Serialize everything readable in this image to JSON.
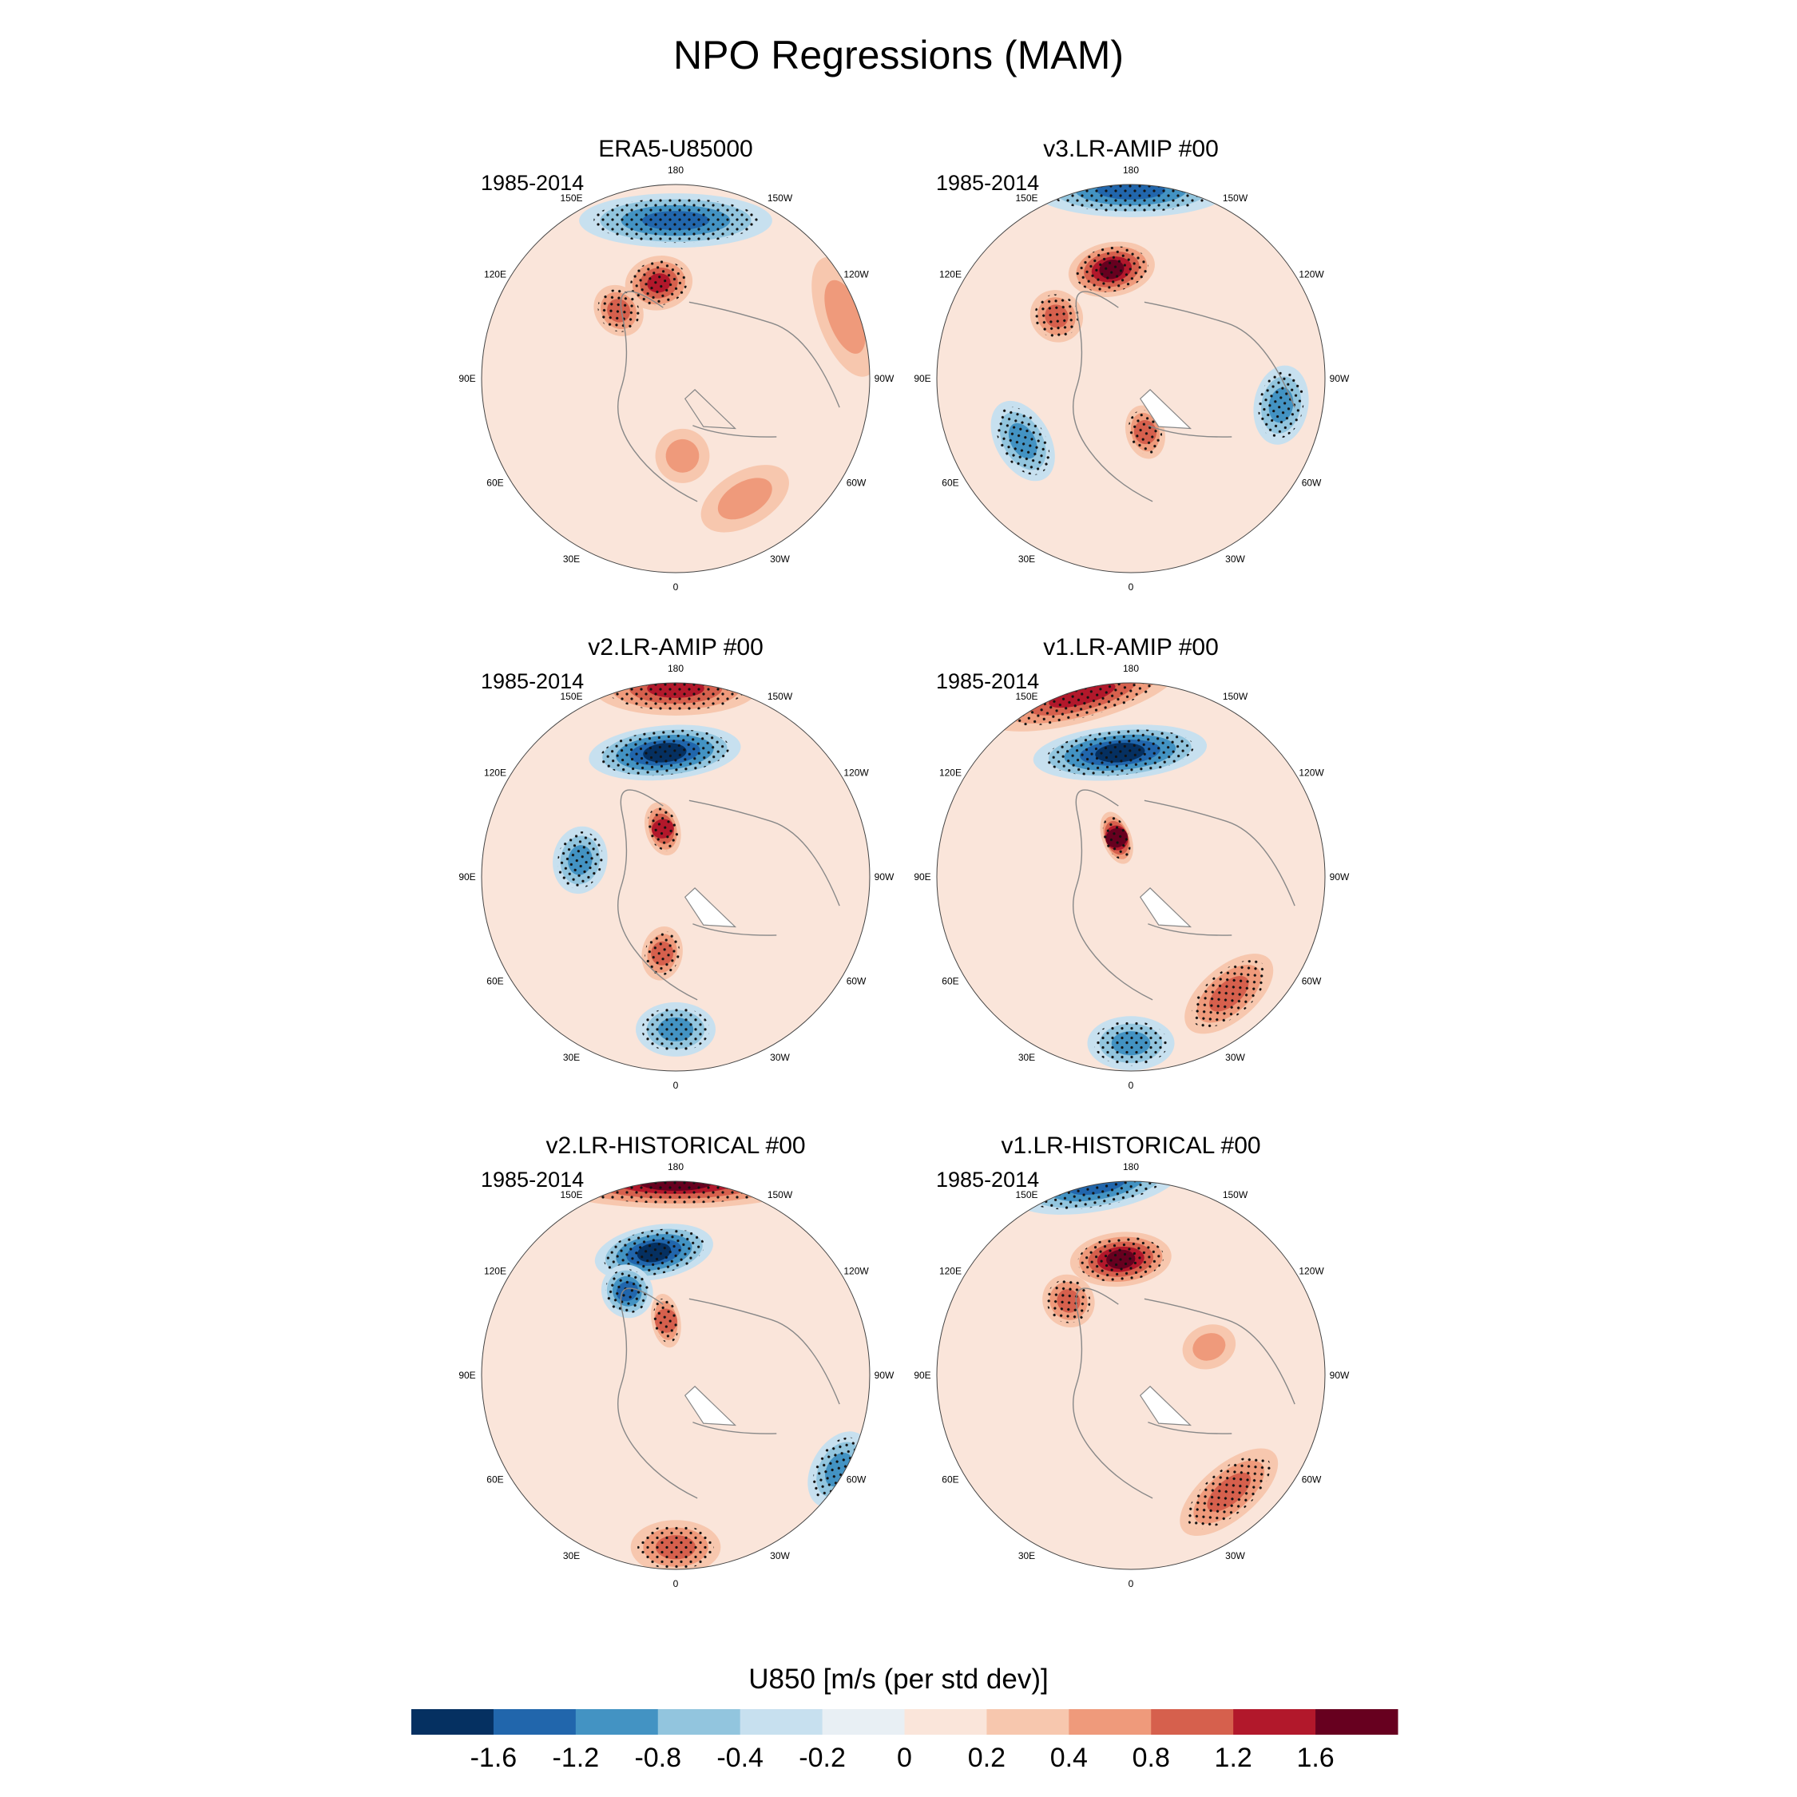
{
  "title": "NPO Regressions (MAM)",
  "chart_data": {
    "type": "polar-stereographic-contour-maps",
    "variable": "U850",
    "panels": [
      {
        "title": "ERA5-U85000",
        "period": "1985-2014",
        "features": [
          {
            "lon": 180,
            "lat": 33,
            "lon_span": 70,
            "value": -1.2
          },
          {
            "lon": 170,
            "lat": 55,
            "lon_span": 40,
            "value": 1.2
          },
          {
            "lon": 140,
            "lat": 58,
            "lon_span": 30,
            "value": 0.8
          },
          {
            "lon": -110,
            "lat": 25,
            "lon_span": 40,
            "value": 0.4
          },
          {
            "lon": -30,
            "lat": 40,
            "lon_span": 40,
            "value": 0.4
          },
          {
            "lon": -5,
            "lat": 62,
            "lon_span": 40,
            "value": 0.4
          }
        ]
      },
      {
        "title": "v3.LR-AMIP  #00",
        "period": "1985-2014",
        "features": [
          {
            "lon": 180,
            "lat": 22,
            "lon_span": 60,
            "value": -1.2
          },
          {
            "lon": 170,
            "lat": 50,
            "lon_span": 45,
            "value": 1.6
          },
          {
            "lon": 130,
            "lat": 55,
            "lon_span": 30,
            "value": 0.8
          },
          {
            "lon": -15,
            "lat": 70,
            "lon_span": 40,
            "value": 0.8
          },
          {
            "lon": -80,
            "lat": 35,
            "lon_span": 30,
            "value": -0.8
          },
          {
            "lon": 60,
            "lat": 45,
            "lon_span": 40,
            "value": -0.8
          }
        ]
      },
      {
        "title": "v2.LR-AMIP  #00",
        "period": "1985-2014",
        "features": [
          {
            "lon": 180,
            "lat": 22,
            "lon_span": 50,
            "value": 1.2
          },
          {
            "lon": 175,
            "lat": 45,
            "lon_span": 70,
            "value": -1.6
          },
          {
            "lon": 165,
            "lat": 72,
            "lon_span": 40,
            "value": 1.2
          },
          {
            "lon": 100,
            "lat": 55,
            "lon_span": 40,
            "value": -0.8
          },
          {
            "lon": 0,
            "lat": 35,
            "lon_span": 30,
            "value": -0.8
          },
          {
            "lon": 10,
            "lat": 62,
            "lon_span": 30,
            "value": 0.8
          }
        ]
      },
      {
        "title": "v1.LR-AMIP  #00",
        "period": "1985-2014",
        "features": [
          {
            "lon": 165,
            "lat": 22,
            "lon_span": 60,
            "value": 1.2
          },
          {
            "lon": 175,
            "lat": 45,
            "lon_span": 80,
            "value": -1.6
          },
          {
            "lon": 160,
            "lat": 75,
            "lon_span": 40,
            "value": 1.6
          },
          {
            "lon": -40,
            "lat": 35,
            "lon_span": 40,
            "value": 0.8
          },
          {
            "lon": 0,
            "lat": 30,
            "lon_span": 30,
            "value": -0.8
          }
        ]
      },
      {
        "title": "v2.LR-HISTORICAL  #00",
        "period": "1985-2014",
        "features": [
          {
            "lon": 180,
            "lat": 20,
            "lon_span": 80,
            "value": 1.6
          },
          {
            "lon": 170,
            "lat": 45,
            "lon_span": 55,
            "value": -1.6
          },
          {
            "lon": 150,
            "lat": 55,
            "lon_span": 30,
            "value": -1.2
          },
          {
            "lon": 170,
            "lat": 70,
            "lon_span": 30,
            "value": 0.8
          },
          {
            "lon": -60,
            "lat": 22,
            "lon_span": 25,
            "value": -0.8
          },
          {
            "lon": 0,
            "lat": 28,
            "lon_span": 30,
            "value": 0.8
          }
        ]
      },
      {
        "title": "v1.LR-HISTORICAL  #00",
        "period": "1985-2014",
        "features": [
          {
            "lon": 170,
            "lat": 20,
            "lon_span": 50,
            "value": -1.2
          },
          {
            "lon": 175,
            "lat": 48,
            "lon_span": 50,
            "value": 1.6
          },
          {
            "lon": 140,
            "lat": 55,
            "lon_span": 30,
            "value": 0.8
          },
          {
            "lon": -40,
            "lat": 35,
            "lon_span": 45,
            "value": 0.8
          },
          {
            "lon": -110,
            "lat": 60,
            "lon_span": 30,
            "value": 0.4
          }
        ]
      }
    ],
    "lon_labels": [
      "180",
      "150E",
      "120E",
      "90E",
      "60E",
      "30E",
      "0",
      "30W",
      "60W",
      "90W",
      "120W",
      "150W"
    ],
    "colorbar": {
      "title": "U850 [m/s (per std dev)]",
      "ticks": [
        "-1.6",
        "-1.2",
        "-0.8",
        "-0.4",
        "-0.2",
        "0",
        "0.2",
        "0.4",
        "0.8",
        "1.2",
        "1.6"
      ],
      "levels": [
        -1.6,
        -1.2,
        -0.8,
        -0.4,
        -0.2,
        0,
        0.2,
        0.4,
        0.8,
        1.2,
        1.6
      ],
      "colors": [
        "#053061",
        "#2166ac",
        "#4393c3",
        "#92c5de",
        "#c7e0ef",
        "#e8eff4",
        "#fae5da",
        "#f7c7ae",
        "#ef9a7b",
        "#d6604d",
        "#b2182b",
        "#67001f"
      ]
    }
  }
}
